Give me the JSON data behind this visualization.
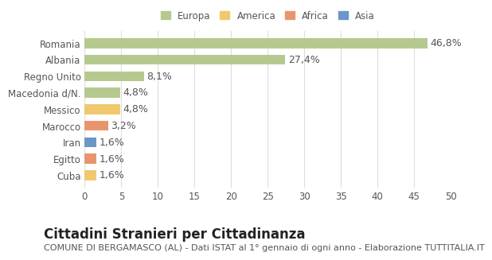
{
  "categories": [
    "Romania",
    "Albania",
    "Regno Unito",
    "Macedonia d/N.",
    "Messico",
    "Marocco",
    "Iran",
    "Egitto",
    "Cuba"
  ],
  "values": [
    46.8,
    27.4,
    8.1,
    4.8,
    4.8,
    3.2,
    1.6,
    1.6,
    1.6
  ],
  "labels": [
    "46,8%",
    "27,4%",
    "8,1%",
    "4,8%",
    "4,8%",
    "3,2%",
    "1,6%",
    "1,6%",
    "1,6%"
  ],
  "colors": [
    "#b5c98e",
    "#b5c98e",
    "#b5c98e",
    "#b5c98e",
    "#f0c96e",
    "#e8956e",
    "#6b96c8",
    "#e8956e",
    "#f0c96e"
  ],
  "legend": [
    {
      "label": "Europa",
      "color": "#b5c98e"
    },
    {
      "label": "America",
      "color": "#f0c96e"
    },
    {
      "label": "Africa",
      "color": "#e8956e"
    },
    {
      "label": "Asia",
      "color": "#6b96c8"
    }
  ],
  "title": "Cittadini Stranieri per Cittadinanza",
  "subtitle": "COMUNE DI BERGAMASCO (AL) - Dati ISTAT al 1° gennaio di ogni anno - Elaborazione TUTTITALIA.IT",
  "xlim": [
    0,
    50
  ],
  "xticks": [
    0,
    5,
    10,
    15,
    20,
    25,
    30,
    35,
    40,
    45,
    50
  ],
  "bg_color": "#ffffff",
  "grid_color": "#dddddd",
  "bar_height": 0.6,
  "label_fontsize": 9,
  "tick_fontsize": 8.5,
  "title_fontsize": 12,
  "subtitle_fontsize": 8
}
